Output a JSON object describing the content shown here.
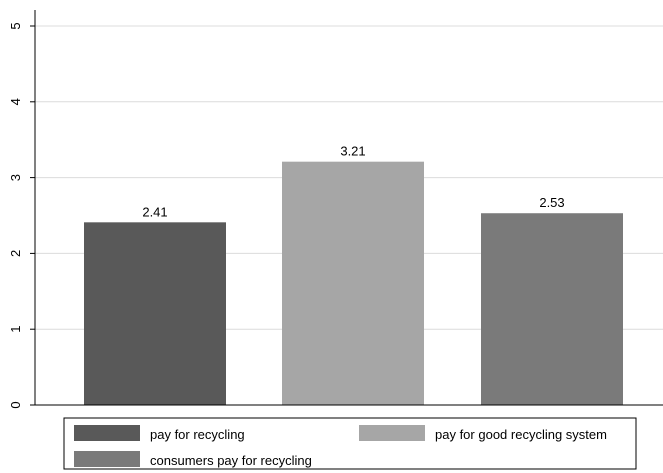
{
  "chart_data": {
    "type": "bar",
    "title": "",
    "xlabel": "",
    "ylabel": "",
    "ylim": [
      0,
      5
    ],
    "yticks": [
      0,
      1,
      2,
      3,
      4,
      5
    ],
    "grid": true,
    "legend_position": "bottom",
    "series": [
      {
        "name": "pay for recycling",
        "value": 2.41,
        "label": "2.41",
        "color": "#595959"
      },
      {
        "name": "pay for good recycling system",
        "value": 3.21,
        "label": "3.21",
        "color": "#a6a6a6"
      },
      {
        "name": "consumers pay for recycling",
        "value": 2.53,
        "label": "2.53",
        "color": "#7a7a7a"
      }
    ]
  }
}
